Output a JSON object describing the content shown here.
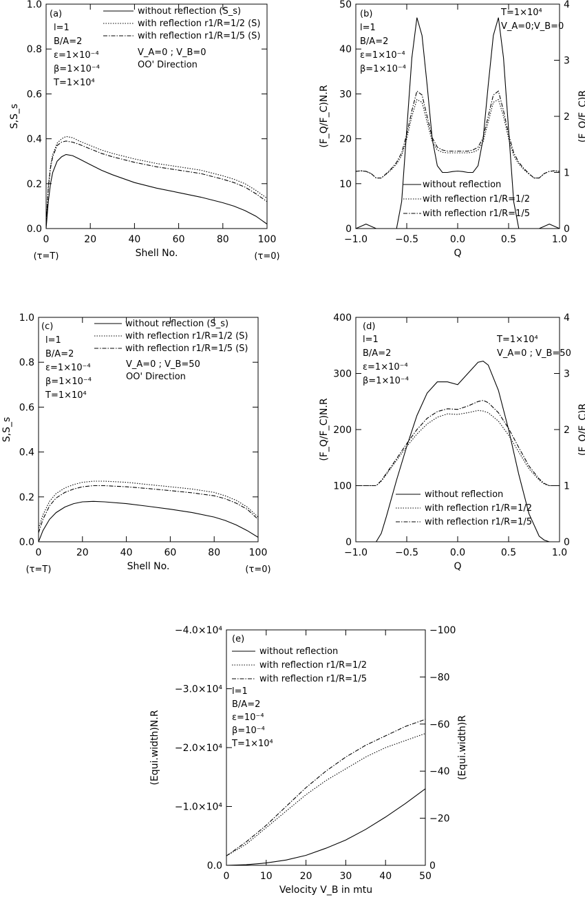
{
  "chart_data": [
    {
      "panel": "(a)",
      "type": "line",
      "xlabel": "Shell No.",
      "ylabel": "S,S_s",
      "xlim": [
        0,
        100
      ],
      "ylim": [
        0,
        1.0
      ],
      "xticks": [
        "0",
        "20",
        "40",
        "60",
        "80",
        "100"
      ],
      "yticks": [
        "0.0",
        "0.2",
        "0.4",
        "0.6",
        "0.8",
        "1.0"
      ],
      "under_labels": [
        "(τ=T)",
        "(τ=0)"
      ],
      "legend": [
        "without reflection (S_s)",
        "with reflection r1/R=1/2 (S)",
        "with reflection r1/R=1/5 (S)"
      ],
      "annotations": [
        "l=1",
        "B/A=2",
        "ε=1×10⁻⁴",
        "β=1×10⁻⁴",
        "T=1×10⁴",
        "V_A=0 ; V_B=0",
        "OO' Direction"
      ],
      "x": [
        0,
        1,
        2,
        3,
        5,
        7,
        9,
        12,
        15,
        20,
        25,
        30,
        40,
        50,
        60,
        70,
        80,
        85,
        90,
        95,
        100
      ],
      "series": [
        {
          "name": "without reflection (S_s)",
          "style": "solid",
          "values": [
            0.0,
            0.12,
            0.2,
            0.25,
            0.3,
            0.32,
            0.33,
            0.325,
            0.31,
            0.285,
            0.26,
            0.24,
            0.205,
            0.18,
            0.16,
            0.14,
            0.115,
            0.1,
            0.08,
            0.055,
            0.02
          ]
        },
        {
          "name": "with reflection r1/R=1/2 (S)",
          "style": "dotted",
          "values": [
            0.02,
            0.19,
            0.28,
            0.33,
            0.38,
            0.4,
            0.41,
            0.405,
            0.39,
            0.37,
            0.35,
            0.335,
            0.31,
            0.29,
            0.275,
            0.26,
            0.235,
            0.22,
            0.2,
            0.17,
            0.135
          ]
        },
        {
          "name": "with reflection r1/R=1/5 (S)",
          "style": "dashdot",
          "values": [
            0.02,
            0.18,
            0.27,
            0.32,
            0.37,
            0.385,
            0.39,
            0.385,
            0.375,
            0.355,
            0.335,
            0.32,
            0.295,
            0.275,
            0.26,
            0.245,
            0.22,
            0.205,
            0.185,
            0.155,
            0.12
          ]
        }
      ]
    },
    {
      "panel": "(b)",
      "type": "line",
      "xlabel": "Q",
      "ylabel": "(F_Q/F_C)N.R",
      "ylabel_right": "(F_Q/F_C)R",
      "xlim": [
        -1,
        1
      ],
      "ylim": [
        0,
        50
      ],
      "ylim_right": [
        0,
        4
      ],
      "xticks": [
        "−1.0",
        "−0.5",
        "0.0",
        "0.5",
        "1.0"
      ],
      "yticks": [
        "0",
        "10",
        "20",
        "30",
        "40",
        "50"
      ],
      "yticks_right": [
        "0",
        "1",
        "2",
        "3",
        "4"
      ],
      "legend": [
        "without reflection",
        "with reflection r1/R=1/2",
        "with reflection r1/R=1/5"
      ],
      "annotations": [
        "l=1",
        "B/A=2",
        "ε=1×10⁻⁴",
        "β=1×10⁻⁴",
        "T=1×10⁴",
        "V_A=0;V_B=0"
      ],
      "x": [
        -1.0,
        -0.95,
        -0.9,
        -0.85,
        -0.8,
        -0.75,
        -0.7,
        -0.65,
        -0.6,
        -0.55,
        -0.5,
        -0.45,
        -0.4,
        -0.35,
        -0.3,
        -0.25,
        -0.2,
        -0.15,
        -0.1,
        -0.05,
        0.0,
        0.05,
        0.1,
        0.15,
        0.2,
        0.25,
        0.3,
        0.35,
        0.4,
        0.45,
        0.5,
        0.55,
        0.6,
        0.65,
        0.7,
        0.75,
        0.8,
        0.85,
        0.9,
        0.95,
        1.0
      ],
      "series": [
        {
          "name": "without reflection",
          "style": "solid",
          "axis": "left",
          "values": [
            0,
            0.5,
            1,
            0.5,
            0,
            0,
            0,
            0,
            0,
            6,
            22,
            38,
            47,
            43,
            32,
            20,
            14,
            12.5,
            12.5,
            12.7,
            12.8,
            12.7,
            12.5,
            12.5,
            14,
            20,
            32,
            43,
            47,
            38,
            22,
            6,
            0,
            0,
            0,
            0,
            0,
            0.5,
            1,
            0.5,
            0
          ]
        },
        {
          "name": "with reflection r1/R=1/2",
          "style": "dotted",
          "axis": "right",
          "values": [
            1.02,
            1.03,
            1.02,
            0.98,
            0.9,
            0.9,
            0.97,
            1.05,
            1.15,
            1.3,
            1.6,
            2.0,
            2.3,
            2.25,
            1.9,
            1.55,
            1.4,
            1.36,
            1.35,
            1.35,
            1.35,
            1.35,
            1.35,
            1.36,
            1.4,
            1.55,
            1.9,
            2.25,
            2.3,
            2.0,
            1.6,
            1.3,
            1.15,
            1.05,
            0.97,
            0.9,
            0.9,
            0.98,
            1.02,
            1.03,
            1.02
          ]
        },
        {
          "name": "with reflection r1/R=1/5",
          "style": "dashdot",
          "axis": "right",
          "values": [
            1.02,
            1.03,
            1.02,
            0.98,
            0.9,
            0.9,
            0.98,
            1.07,
            1.18,
            1.35,
            1.68,
            2.1,
            2.45,
            2.38,
            2.0,
            1.62,
            1.45,
            1.4,
            1.38,
            1.38,
            1.38,
            1.38,
            1.38,
            1.4,
            1.45,
            1.62,
            2.0,
            2.38,
            2.45,
            2.1,
            1.68,
            1.35,
            1.18,
            1.07,
            0.98,
            0.9,
            0.9,
            0.98,
            1.02,
            1.03,
            1.02
          ]
        }
      ]
    },
    {
      "panel": "(c)",
      "type": "line",
      "xlabel": "Shell No.",
      "ylabel": "S,S_s",
      "xlim": [
        0,
        100
      ],
      "ylim": [
        0,
        1.0
      ],
      "xticks": [
        "0",
        "20",
        "40",
        "60",
        "80",
        "100"
      ],
      "yticks": [
        "0.0",
        "0.2",
        "0.4",
        "0.6",
        "0.8",
        "1.0"
      ],
      "under_labels": [
        "(τ=T)",
        "(τ=0)"
      ],
      "legend": [
        "without reflection (S_s)",
        "with reflection r1/R=1/2 (S)",
        "with reflection r1/R=1/5 (S)"
      ],
      "annotations": [
        "l=1",
        "B/A=2",
        "ε=1×10⁻⁴",
        "β=1×10⁻⁴",
        "T=1×10⁴",
        "V_A=0 ; V_B=50",
        "OO' Direction"
      ],
      "x": [
        0,
        2,
        5,
        8,
        12,
        16,
        20,
        25,
        30,
        40,
        50,
        60,
        70,
        80,
        85,
        90,
        95,
        100
      ],
      "series": [
        {
          "name": "without reflection (S_s)",
          "style": "solid",
          "values": [
            0.0,
            0.05,
            0.1,
            0.13,
            0.155,
            0.17,
            0.178,
            0.18,
            0.178,
            0.17,
            0.158,
            0.145,
            0.13,
            0.11,
            0.095,
            0.075,
            0.05,
            0.02
          ]
        },
        {
          "name": "with reflection r1/R=1/2 (S)",
          "style": "dotted",
          "values": [
            0.06,
            0.12,
            0.18,
            0.215,
            0.24,
            0.255,
            0.265,
            0.27,
            0.27,
            0.265,
            0.255,
            0.245,
            0.235,
            0.22,
            0.205,
            0.185,
            0.155,
            0.11
          ]
        },
        {
          "name": "with reflection r1/R=1/5 (S)",
          "style": "dashdot",
          "values": [
            0.04,
            0.1,
            0.16,
            0.195,
            0.22,
            0.235,
            0.245,
            0.25,
            0.25,
            0.245,
            0.237,
            0.228,
            0.218,
            0.205,
            0.192,
            0.172,
            0.145,
            0.1
          ]
        }
      ]
    },
    {
      "panel": "(d)",
      "type": "line",
      "xlabel": "Q",
      "ylabel": "(F_Q/F_C)N.R",
      "ylabel_right": "(F_Q/F_C)R",
      "xlim": [
        -1,
        1
      ],
      "ylim": [
        0,
        400
      ],
      "ylim_right": [
        0,
        4
      ],
      "xticks": [
        "−1.0",
        "−0.5",
        "0.0",
        "0.5",
        "1.0"
      ],
      "yticks": [
        "0",
        "100",
        "200",
        "300",
        "400"
      ],
      "yticks_right": [
        "0",
        "1",
        "2",
        "3",
        "4"
      ],
      "legend": [
        "without reflection",
        "with reflection r1/R=1/2",
        "with reflection r1/R=1/5"
      ],
      "annotations": [
        "l=1",
        "B/A=2",
        "ε=1×10⁻⁴",
        "β=1×10⁻⁴",
        "T=1×10⁴",
        "V_A=0 ; V_B=50"
      ],
      "x": [
        -1.0,
        -0.9,
        -0.8,
        -0.75,
        -0.7,
        -0.6,
        -0.5,
        -0.4,
        -0.3,
        -0.2,
        -0.1,
        0.0,
        0.1,
        0.2,
        0.25,
        0.3,
        0.4,
        0.5,
        0.6,
        0.7,
        0.8,
        0.85,
        0.9,
        0.95,
        1.0
      ],
      "series": [
        {
          "name": "without reflection",
          "style": "solid",
          "axis": "left",
          "values": [
            0,
            0,
            0,
            15,
            45,
            110,
            170,
            225,
            265,
            285,
            285,
            280,
            300,
            320,
            322,
            315,
            270,
            200,
            120,
            50,
            10,
            3,
            0,
            0,
            0
          ]
        },
        {
          "name": "with reflection r1/R=1/2",
          "style": "dotted",
          "axis": "right",
          "values": [
            1.0,
            1.0,
            1.0,
            1.08,
            1.2,
            1.45,
            1.7,
            1.92,
            2.1,
            2.22,
            2.28,
            2.27,
            2.3,
            2.34,
            2.33,
            2.3,
            2.15,
            1.9,
            1.6,
            1.3,
            1.1,
            1.03,
            1.0,
            1.0,
            1.0
          ]
        },
        {
          "name": "with reflection r1/R=1/5",
          "style": "dashdot",
          "axis": "right",
          "values": [
            1.0,
            1.0,
            1.0,
            1.09,
            1.22,
            1.48,
            1.75,
            2.0,
            2.2,
            2.32,
            2.37,
            2.36,
            2.42,
            2.5,
            2.52,
            2.48,
            2.3,
            2.02,
            1.68,
            1.35,
            1.12,
            1.04,
            1.0,
            1.0,
            1.0
          ]
        }
      ]
    },
    {
      "panel": "(e)",
      "type": "line",
      "xlabel": "Velocity V_B in mtu",
      "ylabel": "(Equi.width)N.R",
      "ylabel_right": "(Equi.width)R",
      "xlim": [
        0,
        50
      ],
      "ylim": [
        0,
        -40000
      ],
      "ylim_right": [
        0,
        -100
      ],
      "xticks": [
        "0",
        "10",
        "20",
        "30",
        "40",
        "50"
      ],
      "yticks": [
        "0.0",
        "−1.0×10⁴",
        "−2.0×10⁴",
        "−3.0×10⁴",
        "−4.0×10⁴"
      ],
      "yticks_right": [
        "0",
        "−20",
        "−40",
        "−60",
        "−80",
        "−100"
      ],
      "legend": [
        "without reflection",
        "with reflection r1/R=1/2",
        "with reflection r1/R=1/5"
      ],
      "annotations": [
        "l=1",
        "B/A=2",
        "ε=10⁻⁴",
        "β=10⁻⁴",
        "T=1×10⁴"
      ],
      "x": [
        0,
        5,
        10,
        15,
        20,
        25,
        30,
        35,
        40,
        45,
        50
      ],
      "series": [
        {
          "name": "without reflection",
          "style": "solid",
          "axis": "left",
          "values": [
            0,
            -100,
            -400,
            -900,
            -1700,
            -2900,
            -4300,
            -6100,
            -8200,
            -10500,
            -13000
          ]
        },
        {
          "name": "with reflection r1/R=1/2",
          "style": "dotted",
          "axis": "right",
          "values": [
            -4,
            -9,
            -16,
            -23,
            -30,
            -36,
            -41,
            -46,
            -50,
            -53,
            -56
          ]
        },
        {
          "name": "with reflection r1/R=1/5",
          "style": "dashdot",
          "axis": "right",
          "values": [
            -4,
            -10,
            -17,
            -25,
            -33,
            -40,
            -46,
            -51,
            -55,
            -59,
            -62
          ]
        }
      ]
    }
  ]
}
